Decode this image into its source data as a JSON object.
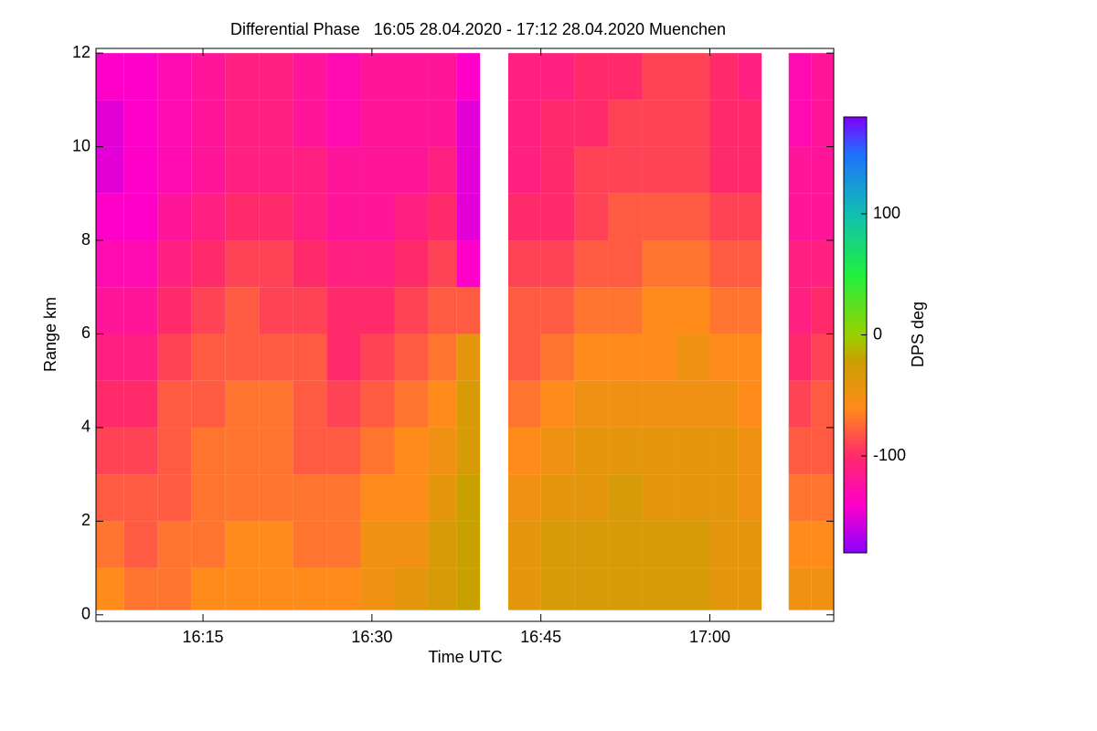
{
  "chart_data": {
    "type": "heatmap",
    "title": "Differential Phase   16:05 28.04.2020 - 17:12 28.04.2020 Muenchen",
    "x_label": "Time UTC",
    "y_label": "Range km",
    "colorbar_label": "DPS deg",
    "xlim": [
      965.5,
      1031
    ],
    "ylim": [
      -0.14,
      12.1
    ],
    "xticks": [
      {
        "value": 975,
        "label": "16:15"
      },
      {
        "value": 990,
        "label": "16:30"
      },
      {
        "value": 1005,
        "label": "16:45"
      },
      {
        "value": 1020,
        "label": "17:00"
      }
    ],
    "yticks": [
      0,
      2,
      4,
      6,
      8,
      10,
      12
    ],
    "clim": [
      -180,
      180
    ],
    "cticks": [
      -100,
      0,
      100
    ],
    "colorscale": [
      [
        -180,
        "#8a00ff"
      ],
      [
        -140,
        "#ff00c8"
      ],
      [
        -100,
        "#ff2a6a"
      ],
      [
        -60,
        "#ff8c1a"
      ],
      [
        -20,
        "#c8a000"
      ],
      [
        0,
        "#9ad000"
      ],
      [
        50,
        "#20f040"
      ],
      [
        100,
        "#10c0b0"
      ],
      [
        150,
        "#2070ff"
      ],
      [
        180,
        "#8000ff"
      ]
    ],
    "xbins": [
      965.5,
      968,
      971,
      974,
      977,
      980,
      983,
      986,
      989,
      992,
      995,
      997.5,
      999.6,
      1002.1,
      1005,
      1008,
      1011,
      1014,
      1017,
      1020,
      1022.5,
      1024.6,
      1027,
      1029,
      1031
    ],
    "ybins": [
      0.1,
      1,
      2,
      3,
      4,
      5,
      6,
      7,
      8,
      9,
      10,
      11,
      12
    ],
    "values": [
      [
        -60,
        -70,
        -70,
        -60,
        -60,
        -60,
        -60,
        -60,
        -50,
        -40,
        -30,
        -20,
        null,
        -40,
        -30,
        -30,
        -30,
        -30,
        -30,
        -40,
        -40,
        null,
        -50,
        -50
      ],
      [
        -70,
        -80,
        -70,
        -70,
        -60,
        -60,
        -70,
        -70,
        -50,
        -50,
        -30,
        -20,
        null,
        -40,
        -30,
        -30,
        -30,
        -30,
        -30,
        -40,
        -40,
        null,
        -60,
        -60
      ],
      [
        -80,
        -80,
        -80,
        -70,
        -70,
        -70,
        -70,
        -70,
        -60,
        -60,
        -40,
        -20,
        null,
        -50,
        -40,
        -40,
        -30,
        -40,
        -40,
        -40,
        -50,
        null,
        -70,
        -70
      ],
      [
        -90,
        -90,
        -80,
        -70,
        -70,
        -70,
        -80,
        -80,
        -70,
        -60,
        -50,
        -30,
        null,
        -60,
        -50,
        -40,
        -40,
        -40,
        -40,
        -40,
        -50,
        null,
        -80,
        -80
      ],
      [
        -100,
        -100,
        -80,
        -80,
        -70,
        -70,
        -80,
        -90,
        -80,
        -70,
        -60,
        -30,
        null,
        -70,
        -60,
        -50,
        -50,
        -50,
        -50,
        -50,
        -60,
        null,
        -90,
        -80
      ],
      [
        -110,
        -110,
        -90,
        -80,
        -80,
        -80,
        -80,
        -100,
        -90,
        -80,
        -70,
        -40,
        null,
        -80,
        -70,
        -60,
        -60,
        -60,
        -50,
        -60,
        -60,
        null,
        -100,
        -90
      ],
      [
        -120,
        -120,
        -100,
        -90,
        -80,
        -90,
        -90,
        -100,
        -100,
        -90,
        -80,
        -80,
        null,
        -80,
        -80,
        -70,
        -70,
        -60,
        -60,
        -70,
        -70,
        null,
        -110,
        -100
      ],
      [
        -130,
        -130,
        -110,
        -100,
        -90,
        -90,
        -100,
        -110,
        -110,
        -100,
        -90,
        -140,
        null,
        -90,
        -90,
        -80,
        -80,
        -70,
        -70,
        -80,
        -80,
        null,
        -110,
        -110
      ],
      [
        -140,
        -140,
        -120,
        -110,
        -100,
        -100,
        -110,
        -120,
        -120,
        -110,
        -100,
        -150,
        null,
        -100,
        -100,
        -90,
        -80,
        -80,
        -80,
        -90,
        -90,
        null,
        -120,
        -120
      ],
      [
        -150,
        -140,
        -130,
        -120,
        -110,
        -110,
        -110,
        -120,
        -120,
        -120,
        -110,
        -150,
        null,
        -110,
        -100,
        -90,
        -90,
        -90,
        -90,
        -100,
        -100,
        null,
        -120,
        -120
      ],
      [
        -150,
        -140,
        -130,
        -120,
        -110,
        -110,
        -120,
        -130,
        -120,
        -120,
        -120,
        -150,
        null,
        -110,
        -100,
        -100,
        -90,
        -90,
        -90,
        -100,
        -100,
        null,
        -130,
        -120
      ],
      [
        -140,
        -140,
        -130,
        -120,
        -110,
        -110,
        -120,
        -130,
        -120,
        -120,
        -120,
        -140,
        null,
        -110,
        -110,
        -100,
        -100,
        -90,
        -90,
        -100,
        -110,
        null,
        -130,
        -120
      ]
    ]
  }
}
